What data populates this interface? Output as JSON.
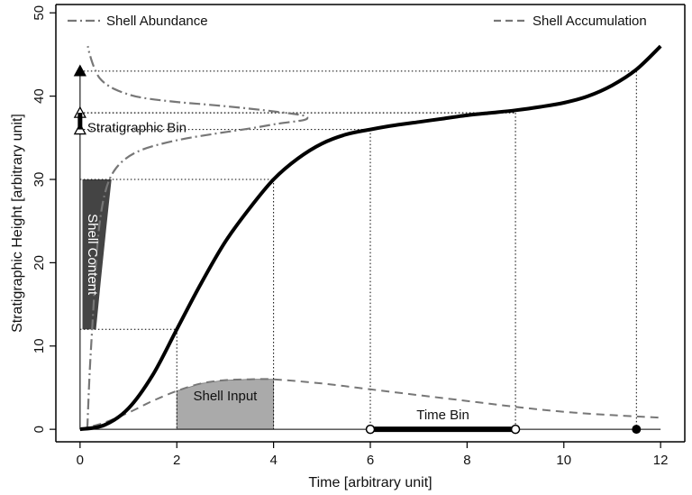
{
  "chart_data": {
    "type": "line",
    "xlabel": "Time [arbitrary unit]",
    "ylabel": "Stratigraphic Height [arbitrary unit]",
    "xlim": [
      -0.5,
      12.5
    ],
    "ylim": [
      -1.5,
      51
    ],
    "xticks": [
      0,
      2,
      4,
      6,
      8,
      10,
      12
    ],
    "yticks": [
      0,
      10,
      20,
      30,
      40,
      50
    ],
    "grid": false,
    "legend": "top",
    "series": [
      {
        "name": "Shell Accumulation",
        "style": "solid-thick",
        "color": "#000000",
        "x": [
          0,
          0.5,
          1,
          1.5,
          2,
          2.5,
          3,
          3.5,
          4,
          4.5,
          5,
          5.5,
          6,
          6.5,
          7,
          7.5,
          8,
          8.5,
          9,
          9.5,
          10,
          10.5,
          11,
          11.5,
          12
        ],
        "y": [
          0,
          0.5,
          2.5,
          6.5,
          12,
          17.5,
          22.5,
          26.5,
          30,
          32.5,
          34.3,
          35.4,
          36,
          36.5,
          36.9,
          37.3,
          37.7,
          38,
          38.3,
          38.7,
          39.2,
          40,
          41.3,
          43.2,
          46
        ]
      },
      {
        "name": "Shell Input",
        "style": "dashed",
        "color": "#777777",
        "x": [
          0,
          0.5,
          1,
          1.5,
          2,
          2.5,
          3,
          3.5,
          4,
          5,
          6,
          7,
          8,
          9,
          10,
          11,
          12
        ],
        "y": [
          0,
          0.8,
          2,
          3.4,
          4.6,
          5.5,
          5.9,
          6,
          6,
          5.5,
          4.8,
          4.1,
          3.4,
          2.7,
          2.1,
          1.7,
          1.4
        ]
      },
      {
        "name": "Shell Abundance",
        "style": "dash-dot",
        "color": "#777777",
        "x": [
          0.15,
          0.17,
          0.2,
          0.24,
          0.28,
          0.33,
          0.4,
          0.5,
          0.65,
          0.9,
          1.3,
          2,
          2.8,
          3.5,
          4.1,
          4.6,
          4.7,
          4.6,
          4.1,
          3.5,
          2.8,
          2,
          1.3,
          0.9,
          0.6,
          0.4,
          0.28,
          0.2,
          0.16
        ],
        "y": [
          0,
          3,
          7,
          11,
          15,
          20,
          24.5,
          28,
          30.5,
          32.3,
          33.6,
          34.7,
          35.5,
          36.1,
          36.7,
          37.1,
          37.4,
          37.7,
          38.1,
          38.5,
          38.9,
          39.3,
          39.8,
          40.4,
          41.2,
          42.2,
          43.6,
          45,
          46
        ]
      }
    ],
    "shaded_regions": [
      {
        "label": "Shell Content",
        "color": "#444444",
        "x_left": 0.05,
        "y_bottom": 12,
        "y_top": 30,
        "x_right_bottom": 0.33,
        "x_right_top": 0.65
      },
      {
        "label": "Shell Input",
        "color": "#aaaaaa",
        "x_from": 2,
        "x_to": 4
      }
    ],
    "dotted_guides": [
      {
        "x": 2,
        "y": 12
      },
      {
        "x": 4,
        "y": 30
      },
      {
        "x": 6,
        "y": 36
      },
      {
        "x": 9,
        "y": 38
      },
      {
        "x": 11.5,
        "y": 43
      }
    ],
    "time_bin": {
      "label": "Time Bin",
      "x_from": 6,
      "x_to": 9,
      "extra_point": 11.5
    },
    "stratigraphic_bin": {
      "label": "Stratigraphic Bin",
      "y_from": 36,
      "y_to": 38,
      "marker_y": 43,
      "marker_x": 0
    },
    "annotations": [
      "Shell Content",
      "Shell Input",
      "Time Bin",
      "Stratigraphic Bin"
    ]
  }
}
